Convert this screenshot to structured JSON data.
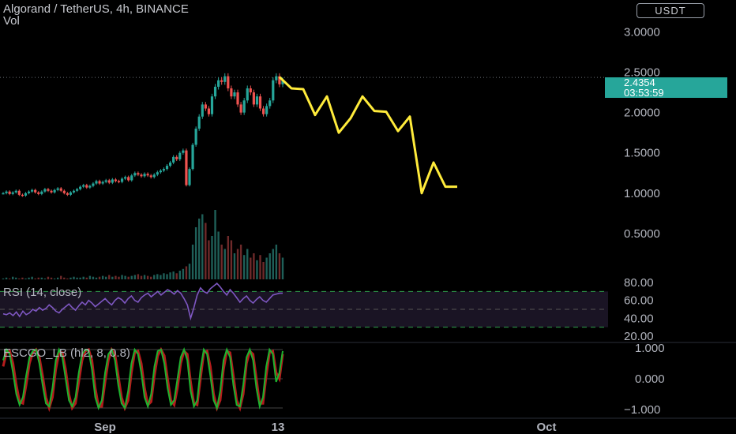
{
  "header": {
    "title": "Algorand / TetherUS, 4h, BINANCE",
    "vol_label": "Vol",
    "currency_button": "USDT"
  },
  "last_price": {
    "value": "2.4354",
    "countdown": "03:53:59"
  },
  "colors": {
    "up": "#26a69a",
    "down": "#ef5350",
    "projection": "#ffeb3b",
    "rsi": "#7e57c2",
    "osc_green": "#1db32f",
    "osc_red": "#b51c1c",
    "band": "#1a1424",
    "axis_text": "#b2b5be"
  },
  "chart_data": [
    {
      "type": "candlestick",
      "title": "Algorand / TetherUS, 4h, BINANCE",
      "ylim": [
        0,
        3.2
      ],
      "y_ticks": [
        "3.0000",
        "2.5000",
        "2.0000",
        "1.5000",
        "1.0000",
        "0.5000"
      ],
      "x_ticks": [
        "Sep",
        "13",
        "Oct"
      ],
      "last_price": 2.4354,
      "candles_close": [
        1.0,
        1.02,
        0.99,
        1.01,
        1.03,
        0.98,
        0.97,
        1.0,
        1.02,
        1.04,
        1.01,
        0.99,
        1.02,
        1.05,
        1.03,
        1.01,
        1.04,
        1.06,
        1.03,
        1.0,
        0.98,
        1.01,
        1.03,
        1.05,
        1.08,
        1.1,
        1.07,
        1.09,
        1.12,
        1.15,
        1.12,
        1.14,
        1.16,
        1.13,
        1.17,
        1.15,
        1.14,
        1.18,
        1.2,
        1.16,
        1.22,
        1.25,
        1.23,
        1.21,
        1.24,
        1.22,
        1.2,
        1.23,
        1.26,
        1.28,
        1.3,
        1.34,
        1.38,
        1.45,
        1.42,
        1.5,
        1.53,
        1.1,
        1.3,
        1.6,
        1.8,
        1.95,
        2.1,
        2.05,
        1.98,
        2.2,
        2.32,
        2.4,
        2.38,
        2.45,
        2.3,
        2.2,
        2.25,
        2.1,
        2.0,
        2.15,
        2.3,
        2.25,
        2.1,
        2.2,
        2.05,
        1.98,
        2.08,
        2.15,
        2.4,
        2.45,
        2.35,
        2.4
      ],
      "projection": {
        "name": "",
        "points": [
          [
            0,
            2.44
          ],
          [
            1,
            2.3
          ],
          [
            2,
            2.29
          ],
          [
            3,
            1.97
          ],
          [
            4,
            2.2
          ],
          [
            5,
            1.75
          ],
          [
            6,
            1.93
          ],
          [
            7,
            2.2
          ],
          [
            8,
            2.02
          ],
          [
            9,
            2.01
          ],
          [
            10,
            1.77
          ],
          [
            11,
            1.95
          ],
          [
            12,
            1.0
          ],
          [
            13,
            1.38
          ],
          [
            14,
            1.08
          ],
          [
            15,
            1.08
          ]
        ]
      }
    },
    {
      "type": "bar",
      "title": "Vol",
      "values": [
        1,
        2,
        1,
        3,
        2,
        1,
        2,
        1,
        2,
        3,
        1,
        2,
        2,
        1,
        3,
        2,
        1,
        2,
        4,
        2,
        1,
        2,
        3,
        2,
        2,
        3,
        2,
        4,
        3,
        2,
        3,
        4,
        3,
        5,
        3,
        4,
        3,
        5,
        4,
        3,
        4,
        5,
        6,
        4,
        5,
        4,
        3,
        5,
        6,
        5,
        7,
        6,
        8,
        9,
        7,
        10,
        12,
        15,
        18,
        40,
        60,
        70,
        75,
        65,
        45,
        50,
        80,
        55,
        40,
        35,
        50,
        45,
        30,
        35,
        40,
        28,
        35,
        25,
        30,
        22,
        28,
        20,
        25,
        30,
        35,
        40,
        30,
        25
      ]
    },
    {
      "type": "line",
      "title": "RSI (14, close)",
      "ylim": [
        20,
        80
      ],
      "y_ticks": [
        "80.00",
        "60.00",
        "40.00",
        "20.00"
      ],
      "bands": [
        70,
        50,
        30
      ],
      "values": [
        45,
        44,
        46,
        43,
        47,
        42,
        48,
        44,
        46,
        50,
        48,
        52,
        49,
        51,
        55,
        52,
        48,
        46,
        50,
        53,
        56,
        52,
        49,
        54,
        58,
        55,
        60,
        57,
        53,
        56,
        59,
        62,
        58,
        55,
        60,
        63,
        61,
        57,
        62,
        65,
        60,
        58,
        63,
        66,
        68,
        64,
        67,
        70,
        66,
        69,
        72,
        70,
        67,
        71,
        68,
        62,
        55,
        40,
        52,
        66,
        74,
        70,
        68,
        73,
        76,
        79,
        75,
        70,
        66,
        72,
        68,
        63,
        58,
        62,
        65,
        60,
        57,
        61,
        64,
        60,
        58,
        62,
        66,
        67,
        68,
        68
      ]
    },
    {
      "type": "line",
      "title": "ESCGO_LB (hl2, 8, 0.8)",
      "ylim": [
        -1,
        1
      ],
      "y_ticks": [
        "1.000",
        "0.000",
        "−1.000"
      ],
      "series": [
        {
          "values": [
            0.6,
            0.95,
            0.8,
            0.2,
            -0.5,
            -0.85,
            -0.6,
            0.1,
            0.7,
            0.9,
            0.95,
            0.5,
            -0.2,
            -0.8,
            -0.9,
            -0.3,
            0.6,
            0.95,
            0.7,
            0.0,
            -0.7,
            -0.9,
            -0.6,
            0.2,
            0.8,
            0.95,
            0.9,
            0.3,
            -0.6,
            -0.95,
            -0.7,
            0.2,
            0.8,
            0.95,
            0.6,
            -0.2,
            -0.8,
            -0.95,
            -0.4,
            0.5,
            0.95,
            0.8,
            0.2,
            -0.6,
            -0.9,
            -0.5,
            0.4,
            0.9,
            0.95,
            0.5,
            -0.3,
            -0.85,
            -0.7,
            0.0,
            0.7,
            0.95,
            0.6,
            -0.4,
            -0.9,
            -0.7,
            0.3,
            0.95,
            0.8,
            0.1,
            -0.7,
            -0.95,
            -0.4,
            0.6,
            0.95,
            0.7,
            -0.2,
            -0.85,
            -0.9,
            -0.2,
            0.7,
            0.95,
            0.6,
            -0.3,
            -0.9,
            -0.6,
            0.4,
            0.95,
            0.8,
            -0.1,
            0.2,
            0.9
          ]
        },
        {
          "values": [
            0.4,
            0.85,
            0.9,
            0.5,
            -0.2,
            -0.75,
            -0.8,
            -0.2,
            0.5,
            0.85,
            0.95,
            0.7,
            0.1,
            -0.6,
            -0.95,
            -0.6,
            0.3,
            0.85,
            0.85,
            0.3,
            -0.5,
            -0.95,
            -0.8,
            -0.1,
            0.6,
            0.9,
            0.95,
            0.6,
            -0.3,
            -0.9,
            -0.9,
            -0.1,
            0.6,
            0.95,
            0.8,
            0.1,
            -0.6,
            -0.95,
            -0.7,
            0.2,
            0.85,
            0.9,
            0.5,
            -0.3,
            -0.85,
            -0.75,
            0.1,
            0.75,
            0.95,
            0.75,
            0.0,
            -0.7,
            -0.85,
            -0.3,
            0.5,
            0.9,
            0.8,
            -0.1,
            -0.8,
            -0.85,
            0.0,
            0.85,
            0.9,
            0.4,
            -0.5,
            -0.95,
            -0.7,
            0.3,
            0.9,
            0.85,
            0.1,
            -0.7,
            -0.95,
            -0.5,
            0.5,
            0.9,
            0.8,
            0.0,
            -0.8,
            -0.8,
            0.1,
            0.85,
            0.9,
            0.2,
            0.0,
            0.8
          ]
        }
      ]
    }
  ]
}
